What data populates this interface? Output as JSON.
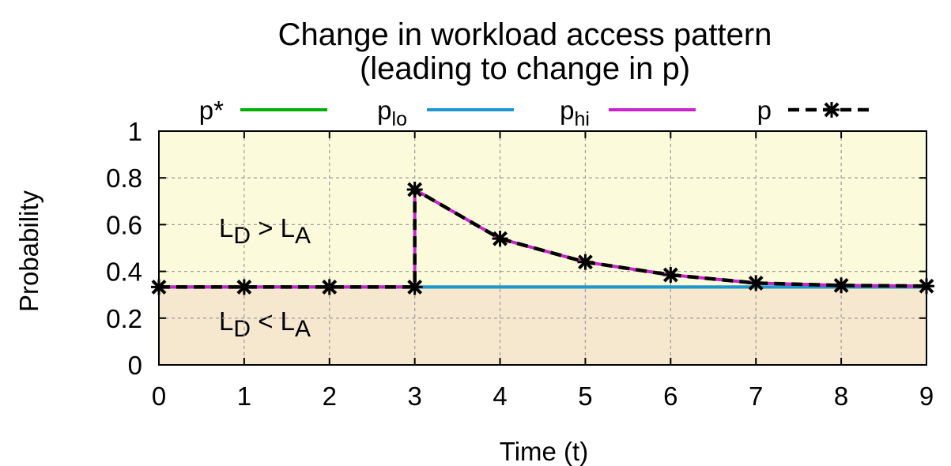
{
  "chart_data": {
    "type": "line",
    "title_line1": "Change in workload access pattern",
    "title_line2": "(leading to change in p)",
    "xlabel": "Time (t)",
    "ylabel": "Probability",
    "xlim": [
      0,
      9
    ],
    "ylim": [
      0,
      1
    ],
    "x_ticks": [
      "0",
      "1",
      "2",
      "3",
      "4",
      "5",
      "6",
      "7",
      "8",
      "9"
    ],
    "y_ticks": [
      "0",
      "0.2",
      "0.4",
      "0.6",
      "0.8",
      "1"
    ],
    "grid": true,
    "legend_position": "top",
    "regions": [
      {
        "y_from": 0.333,
        "y_to": 1.0,
        "color": "#fbfbdc",
        "label_main": "L",
        "label_sub1": "D",
        "label_op": " > L",
        "label_sub2": "A"
      },
      {
        "y_from": 0.0,
        "y_to": 0.333,
        "color": "#f6e8cf",
        "label_main": "L",
        "label_sub1": "D",
        "label_op": " < L",
        "label_sub2": "A"
      }
    ],
    "series": [
      {
        "name": "p*",
        "name_main": "p*",
        "name_sub": "",
        "color": "#00b000",
        "style": "solid",
        "x": [
          0,
          1,
          2,
          3,
          4,
          5,
          6,
          7,
          8,
          9
        ],
        "y": [
          0.333,
          0.333,
          0.333,
          0.333,
          0.333,
          0.333,
          0.333,
          0.333,
          0.333,
          0.333
        ]
      },
      {
        "name": "plo",
        "name_main": "p",
        "name_sub": "lo",
        "color": "#1e96d2",
        "style": "solid",
        "x": [
          0,
          1,
          2,
          3,
          4,
          5,
          6,
          7,
          8,
          9
        ],
        "y": [
          0.333,
          0.333,
          0.333,
          0.333,
          0.333,
          0.333,
          0.333,
          0.333,
          0.333,
          0.333
        ]
      },
      {
        "name": "phi",
        "name_main": "p",
        "name_sub": "hi",
        "color": "#cc22cc",
        "style": "solid",
        "x": [
          0,
          1,
          2,
          3,
          3,
          4,
          5,
          6,
          7,
          8,
          9
        ],
        "y": [
          0.333,
          0.333,
          0.333,
          0.333,
          0.75,
          0.54,
          0.44,
          0.385,
          0.35,
          0.34,
          0.337
        ]
      },
      {
        "name": "p",
        "name_main": "p",
        "name_sub": "",
        "color": "#000000",
        "style": "dashed",
        "marker": "x",
        "x": [
          0,
          1,
          2,
          3,
          3,
          4,
          5,
          6,
          7,
          8,
          9
        ],
        "y": [
          0.333,
          0.333,
          0.333,
          0.333,
          0.75,
          0.54,
          0.44,
          0.385,
          0.35,
          0.34,
          0.337
        ]
      }
    ]
  }
}
